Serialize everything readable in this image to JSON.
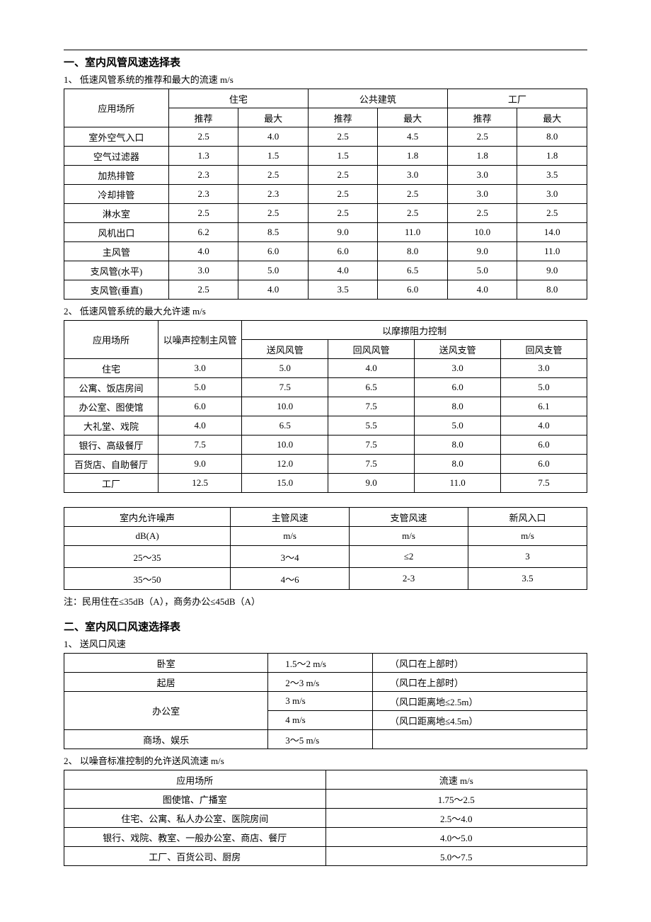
{
  "section1": {
    "heading": "一、室内风管风速选择表",
    "sub1": "1、 低速风管系统的推荐和最大的流速 m/s",
    "t1": {
      "h_app": "应用场所",
      "h_res": "住宅",
      "h_pub": "公共建筑",
      "h_fac": "工厂",
      "h_rec": "推荐",
      "h_max": "最大",
      "rows": [
        {
          "n": "室外空气入口",
          "v": [
            "2.5",
            "4.0",
            "2.5",
            "4.5",
            "2.5",
            "8.0"
          ]
        },
        {
          "n": "空气过滤器",
          "v": [
            "1.3",
            "1.5",
            "1.5",
            "1.8",
            "1.8",
            "1.8"
          ]
        },
        {
          "n": "加热排管",
          "v": [
            "2.3",
            "2.5",
            "2.5",
            "3.0",
            "3.0",
            "3.5"
          ]
        },
        {
          "n": "冷却排管",
          "v": [
            "2.3",
            "2.3",
            "2.5",
            "2.5",
            "3.0",
            "3.0"
          ]
        },
        {
          "n": "淋水室",
          "v": [
            "2.5",
            "2.5",
            "2.5",
            "2.5",
            "2.5",
            "2.5"
          ]
        },
        {
          "n": "风机出口",
          "v": [
            "6.2",
            "8.5",
            "9.0",
            "11.0",
            "10.0",
            "14.0"
          ]
        },
        {
          "n": "主风管",
          "v": [
            "4.0",
            "6.0",
            "6.0",
            "8.0",
            "9.0",
            "11.0"
          ]
        },
        {
          "n": "支风管(水平)",
          "v": [
            "3.0",
            "5.0",
            "4.0",
            "6.5",
            "5.0",
            "9.0"
          ]
        },
        {
          "n": "支风管(垂直)",
          "v": [
            "2.5",
            "4.0",
            "3.5",
            "6.0",
            "4.0",
            "8.0"
          ]
        }
      ]
    },
    "sub2": "2、 低速风管系统的最大允许速 m/s",
    "t2": {
      "h_app": "应用场所",
      "h_noise": "以噪声控制主风管",
      "h_fric": "以摩擦阻力控制",
      "h_c": [
        "送风风管",
        "回风风管",
        "送风支管",
        "回风支管"
      ],
      "rows": [
        {
          "n": "住宅",
          "v": [
            "3.0",
            "5.0",
            "4.0",
            "3.0",
            "3.0"
          ]
        },
        {
          "n": "公寓、饭店房间",
          "v": [
            "5.0",
            "7.5",
            "6.5",
            "6.0",
            "5.0"
          ]
        },
        {
          "n": "办公室、图使馆",
          "v": [
            "6.0",
            "10.0",
            "7.5",
            "8.0",
            "6.1"
          ]
        },
        {
          "n": "大礼堂、戏院",
          "v": [
            "4.0",
            "6.5",
            "5.5",
            "5.0",
            "4.0"
          ]
        },
        {
          "n": "银行、高级餐厅",
          "v": [
            "7.5",
            "10.0",
            "7.5",
            "8.0",
            "6.0"
          ]
        },
        {
          "n": "百货店、自助餐厅",
          "v": [
            "9.0",
            "12.0",
            "7.5",
            "8.0",
            "6.0"
          ]
        },
        {
          "n": "工厂",
          "v": [
            "12.5",
            "15.0",
            "9.0",
            "11.0",
            "7.5"
          ]
        }
      ]
    },
    "t3": {
      "h": [
        "室内允许噪声",
        "主管风速",
        "支管风速",
        "新风入口"
      ],
      "u": [
        "dB(A)",
        "m/s",
        "m/s",
        "m/s"
      ],
      "rows": [
        [
          "25～35",
          "3～4",
          "≤2",
          "3"
        ],
        [
          "35～50",
          "4～6",
          "2-3",
          "3.5"
        ]
      ]
    },
    "note": "注：民用住在≤35dB（A），商务办公≤45dB（A）"
  },
  "section2": {
    "heading": "二、室内风口风速选择表",
    "sub1": "1、 送风口风速",
    "t4": {
      "rows": [
        {
          "n": "卧室",
          "s": [
            [
              "1.5～2 m/s",
              "（风口在上部时）"
            ]
          ]
        },
        {
          "n": "起居",
          "s": [
            [
              "2～3 m/s",
              "（风口在上部时）"
            ]
          ]
        },
        {
          "n": "办公室",
          "s": [
            [
              "3 m/s",
              "（风口距离地≤2.5m）"
            ],
            [
              "4 m/s",
              "（风口距离地≤4.5m）"
            ]
          ]
        },
        {
          "n": "商场、娱乐",
          "s": [
            [
              "3～5 m/s",
              ""
            ]
          ]
        }
      ]
    },
    "sub2": "2、 以噪音标准控制的允许送风流速 m/s",
    "t5": {
      "h": [
        "应用场所",
        "流速 m/s"
      ],
      "rows": [
        [
          "图使馆、广播室",
          "1.75～2.5"
        ],
        [
          "住宅、公寓、私人办公室、医院房间",
          "2.5～4.0"
        ],
        [
          "银行、戏院、教室、一般办公室、商店、餐厅",
          "4.0～5.0"
        ],
        [
          "工厂、百货公司、厨房",
          "5.0～7.5"
        ]
      ]
    }
  }
}
